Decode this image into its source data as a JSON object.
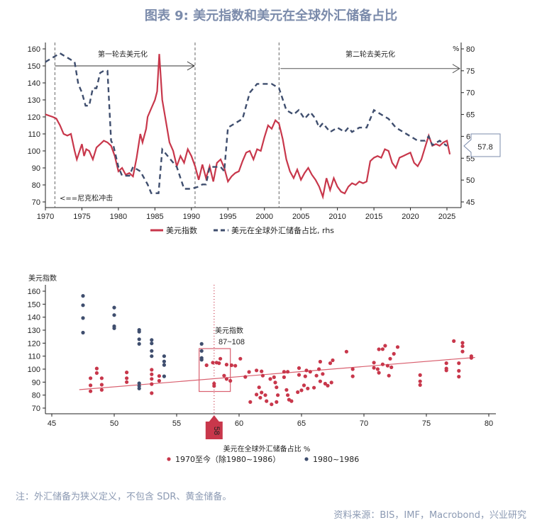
{
  "header": {
    "title": "图表 9:  美元指数和美元在全球外汇储备占比"
  },
  "footer": {
    "note": "注：外汇储备为狭义定义，不包含 SDR、黄金储备。",
    "source": "资料来源：BIS，IMF，Macrobond，兴业研究"
  },
  "colors": {
    "red": "#c8374b",
    "navy": "#3f4e6e",
    "title": "#7b8bab",
    "trend": "#d9606f"
  },
  "chart_data": [
    {
      "type": "line",
      "xlim": [
        1970,
        2027
      ],
      "ylim_left": [
        70,
        160
      ],
      "ylim_right": [
        45,
        80
      ],
      "left_ticks": [
        "160",
        "150",
        "140",
        "130",
        "120",
        "110",
        "100",
        "90",
        "80",
        "70"
      ],
      "right_ticks": [
        "80",
        "75",
        "70",
        "65",
        "60",
        "55",
        "50",
        "45"
      ],
      "x_ticks": [
        "1970",
        "1975",
        "1980",
        "1985",
        "1990",
        "1995",
        "2000",
        "2005",
        "2010",
        "2015",
        "2020",
        "2025"
      ],
      "right_unit": "%",
      "annotations": {
        "phase1": "第一轮去美元化",
        "phase2": "第二轮去美元化",
        "nixon": "<==尼克松冲击",
        "callout": "57.8"
      },
      "vlines": [
        1971.3,
        1990.5,
        2002
      ],
      "legend_position": "bottom",
      "series": [
        {
          "name": "美元指数",
          "axis": "left",
          "style": "solid",
          "x": [
            1970,
            1971,
            1971.5,
            1972,
            1972.5,
            1973,
            1973.5,
            1974,
            1974.3,
            1975,
            1975.3,
            1975.6,
            1976,
            1976.5,
            1977,
            1977.5,
            1978,
            1978.5,
            1979,
            1979.5,
            1980,
            1980.5,
            1981,
            1981.5,
            1982,
            1982.5,
            1983,
            1983.3,
            1983.8,
            1984,
            1984.5,
            1985,
            1985.3,
            1985.6,
            1986,
            1986.4,
            1987,
            1987.5,
            1988,
            1988.5,
            1989,
            1989.5,
            1990,
            1990.5,
            1991,
            1991.5,
            1992,
            1992.5,
            1993,
            1993.5,
            1994,
            1994.5,
            1995,
            1995.5,
            1996,
            1996.5,
            1997,
            1997.5,
            1998,
            1998.5,
            1999,
            1999.5,
            2000,
            2000.5,
            2001,
            2001.5,
            2002,
            2002.5,
            2003,
            2003.5,
            2004,
            2004.5,
            2005,
            2005.5,
            2006,
            2006.5,
            2007,
            2007.5,
            2008,
            2008.5,
            2009,
            2009.5,
            2010,
            2010.5,
            2011,
            2011.5,
            2012,
            2012.5,
            2013,
            2013.5,
            2014,
            2014.5,
            2015,
            2015.5,
            2016,
            2016.5,
            2017,
            2017.5,
            2018,
            2018.5,
            2019,
            2019.5,
            2020,
            2020.5,
            2021,
            2021.5,
            2022,
            2022.5,
            2023,
            2023.5,
            2024,
            2024.5,
            2025,
            2025.4
          ],
          "y": [
            121.5,
            120,
            119,
            115,
            110,
            109,
            110,
            100,
            95,
            104,
            97,
            101,
            100,
            95,
            102,
            104,
            106,
            105,
            103,
            97,
            88,
            90,
            86,
            87,
            85,
            96,
            110,
            105,
            113,
            120,
            125,
            130,
            135,
            157,
            130,
            120,
            105,
            100,
            91,
            97,
            93,
            101,
            97,
            91,
            83,
            92,
            84,
            91,
            82,
            93,
            95,
            90,
            82,
            85,
            87,
            88,
            94,
            99,
            100,
            95,
            101,
            100,
            108,
            115,
            113,
            118,
            116,
            107,
            95,
            88,
            84,
            89,
            83,
            87,
            90,
            86,
            83,
            79,
            73,
            84,
            77,
            84,
            79,
            76,
            75,
            79,
            81,
            80,
            82,
            81,
            82,
            94,
            96,
            97,
            96,
            101,
            100,
            93,
            90,
            96,
            97,
            98,
            99,
            93,
            91,
            95,
            102,
            109,
            103,
            104,
            103,
            105,
            106,
            98
          ]
        },
        {
          "name": "美元在全球外汇储备占比, rhs",
          "axis": "right",
          "style": "dashed",
          "x": [
            1970,
            1970.5,
            1971,
            1972,
            1972.5,
            1973,
            1973.5,
            1974,
            1974.5,
            1975,
            1975.5,
            1976,
            1976.5,
            1977,
            1977.5,
            1978,
            1978.5,
            1979,
            1979.3,
            1980,
            1980.5,
            1981,
            1981.5,
            1982,
            1983,
            1984,
            1984.5,
            1985,
            1985.5,
            1986,
            1987,
            1988,
            1989,
            1990,
            1991,
            1991.5,
            1992,
            1992.5,
            1994,
            1994.5,
            1995,
            1996,
            1997,
            1998,
            1999,
            2000,
            2001,
            2002,
            2003,
            2004,
            2004.7,
            2005.5,
            2006.3,
            2007,
            2007.5,
            2008,
            2009,
            2010,
            2011,
            2011.5,
            2012,
            2013,
            2014,
            2015,
            2016,
            2017,
            2018,
            2019,
            2020,
            2021,
            2022,
            2022.5,
            2023,
            2024,
            2025
          ],
          "y": [
            77,
            77.5,
            78,
            79,
            78.5,
            78,
            77.5,
            77,
            72,
            70,
            67,
            67,
            71,
            71,
            74.5,
            75,
            75,
            59,
            58,
            53,
            51,
            51,
            51,
            53,
            52,
            49,
            47,
            47,
            47,
            57,
            55,
            53,
            48,
            48,
            48.5,
            49,
            49,
            53,
            53,
            52,
            62,
            63,
            64,
            70,
            72,
            72,
            72,
            71,
            66,
            65,
            66,
            64,
            65.5,
            64,
            62,
            63,
            61,
            62,
            61,
            62,
            61,
            62,
            62,
            66,
            65,
            64,
            62,
            61,
            60,
            59,
            59,
            60,
            58,
            59,
            57.8
          ]
        }
      ]
    },
    {
      "type": "scatter",
      "xlabel": "美元在全球外汇储备占比 %",
      "ylabel": "美元指数",
      "xlim": [
        45,
        80
      ],
      "ylim": [
        70,
        160
      ],
      "x_ticks": [
        "45",
        "50",
        "55",
        "60",
        "65",
        "70",
        "75",
        "80"
      ],
      "y_ticks": [
        "160",
        "150",
        "140",
        "130",
        "120",
        "110",
        "100",
        "90",
        "80",
        "70"
      ],
      "marker": {
        "value": 58,
        "label": "58"
      },
      "highlight": {
        "label": "美元指数",
        "range_label": "87~108"
      },
      "legend_position": "bottom",
      "trendline": {
        "x": [
          47.2,
          78.9
        ],
        "y": [
          84.2,
          109
        ]
      },
      "series": [
        {
          "name": "1970至今（除1980~1986）",
          "color": "#c8374b",
          "points": [
            [
              48.1,
              93
            ],
            [
              48.1,
              87.5
            ],
            [
              48.1,
              83
            ],
            [
              48.6,
              100.5
            ],
            [
              48.6,
              97
            ],
            [
              49,
              93
            ],
            [
              49,
              88
            ],
            [
              49,
              84
            ],
            [
              51,
              97.5
            ],
            [
              51,
              93
            ],
            [
              51,
              90
            ],
            [
              53,
              99.5
            ],
            [
              53,
              96
            ],
            [
              53,
              92.5
            ],
            [
              53,
              88.5
            ],
            [
              53,
              81.5
            ],
            [
              53.6,
              94.7
            ],
            [
              53.6,
              91
            ],
            [
              57.9,
              105
            ],
            [
              58.2,
              105
            ],
            [
              58.5,
              108
            ],
            [
              58.4,
              104.6
            ],
            [
              57.4,
              103
            ],
            [
              58,
              88.8
            ],
            [
              58,
              87
            ],
            [
              59,
              103.5
            ],
            [
              59.4,
              103
            ],
            [
              59.7,
              102.6
            ],
            [
              58.8,
              95
            ],
            [
              59,
              92.4
            ],
            [
              59.3,
              91
            ],
            [
              60.1,
              108
            ],
            [
              60.5,
              94
            ],
            [
              60.8,
              97.8
            ],
            [
              61.4,
              99
            ],
            [
              61.8,
              98.3
            ],
            [
              61.9,
              95
            ],
            [
              61.4,
              80.4
            ],
            [
              61.6,
              86
            ],
            [
              61.7,
              78
            ],
            [
              61.8,
              82
            ],
            [
              62.1,
              80
            ],
            [
              62.2,
              75.4
            ],
            [
              60.9,
              74.7
            ],
            [
              62.5,
              92.4
            ],
            [
              62.8,
              93.8
            ],
            [
              62.9,
              89.7
            ],
            [
              63,
              86
            ],
            [
              62.6,
              72.9
            ],
            [
              63,
              74.7
            ],
            [
              63.1,
              80
            ],
            [
              63.6,
              98
            ],
            [
              63.6,
              93.8
            ],
            [
              63.9,
              98
            ],
            [
              63.8,
              84
            ],
            [
              63.9,
              80
            ],
            [
              64,
              76.5
            ],
            [
              64.2,
              75.4
            ],
            [
              64.8,
              100.8
            ],
            [
              64.8,
              95.6
            ],
            [
              64.7,
              82.3
            ],
            [
              65,
              83.7
            ],
            [
              65.2,
              87.5
            ],
            [
              65.4,
              99
            ],
            [
              65.3,
              94.5
            ],
            [
              65.5,
              85.1
            ],
            [
              65.7,
              98
            ],
            [
              66,
              85.7
            ],
            [
              66.2,
              95
            ],
            [
              66.5,
              105.7
            ],
            [
              66.4,
              100
            ],
            [
              66.7,
              96.3
            ],
            [
              66.5,
              90.6
            ],
            [
              66.9,
              88.8
            ],
            [
              67.1,
              87.3
            ],
            [
              67.3,
              104.6
            ],
            [
              67.4,
              89.7
            ],
            [
              67.5,
              106.8
            ],
            [
              68.6,
              113.5
            ],
            [
              69.1,
              100
            ],
            [
              69.1,
              94.5
            ],
            [
              70.8,
              105
            ],
            [
              70.8,
              101
            ],
            [
              71.1,
              100
            ],
            [
              71.2,
              97.2
            ],
            [
              71.2,
              115.3
            ],
            [
              71.5,
              115.4
            ],
            [
              71.7,
              118
            ],
            [
              71.5,
              103.7
            ],
            [
              71.9,
              102.6
            ],
            [
              72.1,
              108
            ],
            [
              72,
              95
            ],
            [
              72.2,
              101.4
            ],
            [
              72.4,
              111.8
            ],
            [
              72.7,
              117
            ],
            [
              74.5,
              95.4
            ],
            [
              74.5,
              90.6
            ],
            [
              74.5,
              87.8
            ],
            [
              76.6,
              104.6
            ],
            [
              76.6,
              100.5
            ],
            [
              76.6,
              99
            ],
            [
              77.2,
              121.6
            ],
            [
              77.6,
              104.6
            ],
            [
              77.6,
              98.7
            ],
            [
              77.6,
              94.2
            ],
            [
              77.9,
              120.3
            ],
            [
              77.9,
              117.6
            ],
            [
              77.9,
              113.6
            ],
            [
              78.6,
              110
            ],
            [
              78.6,
              108.6
            ]
          ]
        },
        {
          "name": "1980~1986",
          "color": "#3f4e6e",
          "points": [
            [
              47.5,
              156.4
            ],
            [
              47.5,
              149.2
            ],
            [
              47.5,
              139.3
            ],
            [
              47.5,
              128.1
            ],
            [
              50,
              147.4
            ],
            [
              50,
              141.6
            ],
            [
              50,
              133
            ],
            [
              50,
              131.5
            ],
            [
              52,
              130.2
            ],
            [
              52,
              128.8
            ],
            [
              52,
              123
            ],
            [
              52,
              119.4
            ],
            [
              52,
              89.1
            ],
            [
              52,
              87
            ],
            [
              52,
              85.1
            ],
            [
              53,
              122.5
            ],
            [
              53,
              119.8
            ],
            [
              53,
              114
            ],
            [
              53,
              110
            ],
            [
              54,
              110
            ],
            [
              54,
              105.9
            ],
            [
              54,
              103.2
            ],
            [
              54,
              94.5
            ],
            [
              57,
              119.4
            ],
            [
              57,
              114
            ],
            [
              57,
              108.6
            ],
            [
              57,
              107.2
            ]
          ]
        }
      ]
    }
  ]
}
